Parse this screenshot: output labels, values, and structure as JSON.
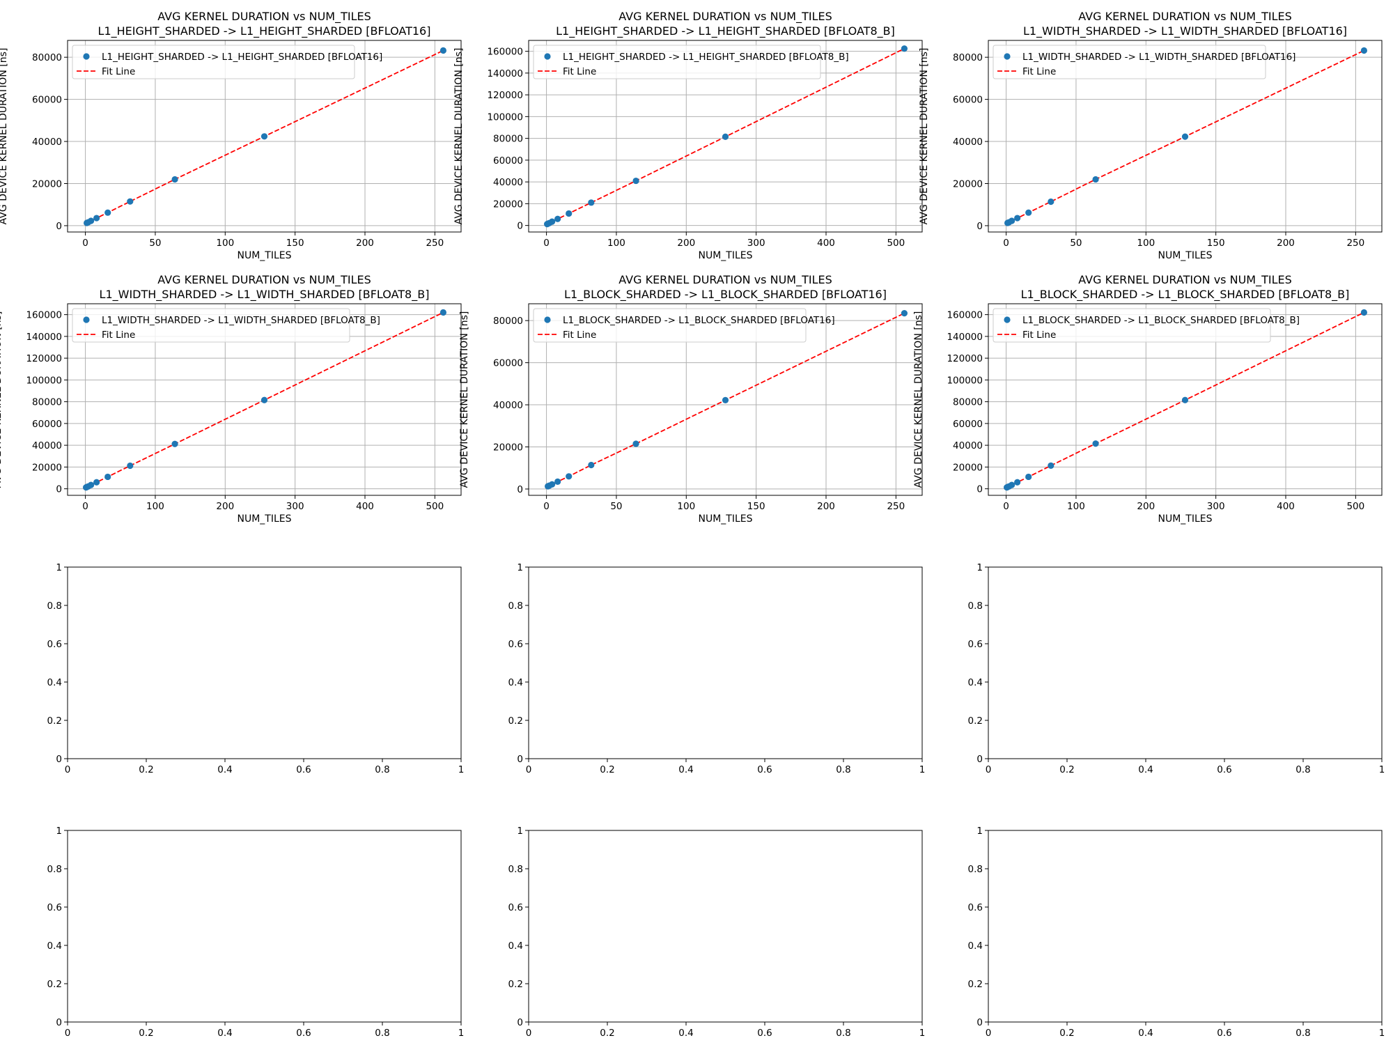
{
  "chart_data": [
    {
      "type": "scatter",
      "title": "AVG KERNEL DURATION vs NUM_TILES",
      "subtitle": "L1_HEIGHT_SHARDED -> L1_HEIGHT_SHARDED [BFLOAT16]",
      "xlabel": "NUM_TILES",
      "ylabel": "AVG DEVICE KERNEL DURATION [ns]",
      "xlim": [
        -12.75,
        268.75
      ],
      "ylim": [
        -3000,
        88000
      ],
      "xticks": [
        0,
        50,
        100,
        150,
        200,
        250
      ],
      "yticks": [
        0,
        20000,
        40000,
        60000,
        80000
      ],
      "grid": true,
      "legend_position": "top-left",
      "series": [
        {
          "name": "L1_HEIGHT_SHARDED -> L1_HEIGHT_SHARDED [BFLOAT16]",
          "kind": "points",
          "x": [
            1,
            2,
            4,
            8,
            16,
            32,
            64,
            128,
            256
          ],
          "y": [
            1300,
            1600,
            2300,
            3600,
            6200,
            11500,
            22000,
            42400,
            83200
          ]
        },
        {
          "name": "Fit Line",
          "kind": "line",
          "x": [
            1,
            2,
            4,
            8,
            16,
            32,
            64,
            128,
            256
          ],
          "y": [
            1300,
            1600,
            2300,
            3600,
            6200,
            11500,
            22000,
            42400,
            83200
          ]
        }
      ]
    },
    {
      "type": "scatter",
      "title": "AVG KERNEL DURATION vs NUM_TILES",
      "subtitle": "L1_HEIGHT_SHARDED -> L1_HEIGHT_SHARDED [BFLOAT8_B]",
      "xlabel": "NUM_TILES",
      "ylabel": "AVG DEVICE KERNEL DURATION [ns]",
      "xlim": [
        -25.5,
        537.5
      ],
      "ylim": [
        -6000,
        170000
      ],
      "xticks": [
        0,
        100,
        200,
        300,
        400,
        500
      ],
      "yticks": [
        0,
        20000,
        40000,
        60000,
        80000,
        100000,
        120000,
        140000,
        160000
      ],
      "grid": true,
      "legend_position": "top-left",
      "series": [
        {
          "name": "L1_HEIGHT_SHARDED -> L1_HEIGHT_SHARDED [BFLOAT8_B]",
          "kind": "points",
          "x": [
            1,
            2,
            4,
            8,
            16,
            32,
            64,
            128,
            256,
            512
          ],
          "y": [
            1300,
            1600,
            2200,
            3500,
            6000,
            11000,
            21000,
            41000,
            81500,
            162500
          ]
        },
        {
          "name": "Fit Line",
          "kind": "line",
          "x": [
            1,
            2,
            4,
            8,
            16,
            32,
            64,
            128,
            256,
            512
          ],
          "y": [
            1300,
            1600,
            2200,
            3500,
            6000,
            11000,
            21000,
            41000,
            81500,
            162500
          ]
        }
      ]
    },
    {
      "type": "scatter",
      "title": "AVG KERNEL DURATION vs NUM_TILES",
      "subtitle": "L1_WIDTH_SHARDED -> L1_WIDTH_SHARDED [BFLOAT16]",
      "xlabel": "NUM_TILES",
      "ylabel": "AVG DEVICE KERNEL DURATION [ns]",
      "xlim": [
        -12.75,
        268.75
      ],
      "ylim": [
        -3000,
        88000
      ],
      "xticks": [
        0,
        50,
        100,
        150,
        200,
        250
      ],
      "yticks": [
        0,
        20000,
        40000,
        60000,
        80000
      ],
      "grid": true,
      "legend_position": "top-left",
      "series": [
        {
          "name": "L1_WIDTH_SHARDED -> L1_WIDTH_SHARDED [BFLOAT16]",
          "kind": "points",
          "x": [
            1,
            2,
            4,
            8,
            16,
            32,
            64,
            128,
            256
          ],
          "y": [
            1300,
            1600,
            2300,
            3600,
            6200,
            11400,
            22000,
            42300,
            83200
          ]
        },
        {
          "name": "Fit Line",
          "kind": "line",
          "x": [
            1,
            2,
            4,
            8,
            16,
            32,
            64,
            128,
            256
          ],
          "y": [
            1300,
            1600,
            2300,
            3600,
            6200,
            11400,
            22000,
            42300,
            83200
          ]
        }
      ]
    },
    {
      "type": "scatter",
      "title": "AVG KERNEL DURATION vs NUM_TILES",
      "subtitle": "L1_WIDTH_SHARDED -> L1_WIDTH_SHARDED [BFLOAT8_B]",
      "xlabel": "NUM_TILES",
      "ylabel": "AVG DEVICE KERNEL DURATION [ns]",
      "xlim": [
        -25.5,
        537.5
      ],
      "ylim": [
        -6000,
        170000
      ],
      "xticks": [
        0,
        100,
        200,
        300,
        400,
        500
      ],
      "yticks": [
        0,
        20000,
        40000,
        60000,
        80000,
        100000,
        120000,
        140000,
        160000
      ],
      "grid": true,
      "legend_position": "top-left",
      "series": [
        {
          "name": "L1_WIDTH_SHARDED -> L1_WIDTH_SHARDED [BFLOAT8_B]",
          "kind": "points",
          "x": [
            1,
            2,
            4,
            8,
            16,
            32,
            64,
            128,
            256,
            512
          ],
          "y": [
            1300,
            1600,
            2200,
            3500,
            6000,
            11000,
            21200,
            41200,
            81500,
            162000
          ]
        },
        {
          "name": "Fit Line",
          "kind": "line",
          "x": [
            1,
            2,
            4,
            8,
            16,
            32,
            64,
            128,
            256,
            512
          ],
          "y": [
            1300,
            1600,
            2200,
            3500,
            6000,
            11000,
            21200,
            41200,
            81500,
            162000
          ]
        }
      ]
    },
    {
      "type": "scatter",
      "title": "AVG KERNEL DURATION vs NUM_TILES",
      "subtitle": "L1_BLOCK_SHARDED -> L1_BLOCK_SHARDED [BFLOAT16]",
      "xlabel": "NUM_TILES",
      "ylabel": "AVG DEVICE KERNEL DURATION [ns]",
      "xlim": [
        -12.75,
        268.75
      ],
      "ylim": [
        -3000,
        88000
      ],
      "xticks": [
        0,
        50,
        100,
        150,
        200,
        250
      ],
      "yticks": [
        0,
        20000,
        40000,
        60000,
        80000
      ],
      "grid": true,
      "legend_position": "top-left",
      "series": [
        {
          "name": "L1_BLOCK_SHARDED -> L1_BLOCK_SHARDED [BFLOAT16]",
          "kind": "points",
          "x": [
            1,
            2,
            4,
            8,
            16,
            32,
            64,
            128,
            256
          ],
          "y": [
            1300,
            1600,
            2200,
            3500,
            6000,
            11400,
            21500,
            42200,
            83500
          ]
        },
        {
          "name": "Fit Line",
          "kind": "line",
          "x": [
            1,
            2,
            4,
            8,
            16,
            32,
            64,
            128,
            256
          ],
          "y": [
            1300,
            1600,
            2200,
            3500,
            6000,
            11400,
            21500,
            42200,
            83500
          ]
        }
      ]
    },
    {
      "type": "scatter",
      "title": "AVG KERNEL DURATION vs NUM_TILES",
      "subtitle": "L1_BLOCK_SHARDED -> L1_BLOCK_SHARDED [BFLOAT8_B]",
      "xlabel": "NUM_TILES",
      "ylabel": "AVG DEVICE KERNEL DURATION [ns]",
      "xlim": [
        -25.5,
        537.5
      ],
      "ylim": [
        -6000,
        170000
      ],
      "xticks": [
        0,
        100,
        200,
        300,
        400,
        500
      ],
      "yticks": [
        0,
        20000,
        40000,
        60000,
        80000,
        100000,
        120000,
        140000,
        160000
      ],
      "grid": true,
      "legend_position": "top-left",
      "series": [
        {
          "name": "L1_BLOCK_SHARDED -> L1_BLOCK_SHARDED [BFLOAT8_B]",
          "kind": "points",
          "x": [
            1,
            2,
            4,
            8,
            16,
            32,
            64,
            128,
            256,
            512
          ],
          "y": [
            1300,
            1600,
            2200,
            3500,
            6000,
            11000,
            21300,
            41500,
            81500,
            162000
          ]
        },
        {
          "name": "Fit Line",
          "kind": "line",
          "x": [
            1,
            2,
            4,
            8,
            16,
            32,
            64,
            128,
            256,
            512
          ],
          "y": [
            1300,
            1600,
            2200,
            3500,
            6000,
            11000,
            21300,
            41500,
            81500,
            162000
          ]
        }
      ]
    },
    {
      "type": "scatter",
      "title": "",
      "xlabel": "",
      "ylabel": "",
      "xlim": [
        0,
        1
      ],
      "ylim": [
        0,
        1
      ],
      "xticks": [
        0,
        0.2,
        0.4,
        0.6,
        0.8,
        1
      ],
      "yticks": [
        0,
        0.2,
        0.4,
        0.6,
        0.8,
        1
      ],
      "grid": false,
      "series": []
    },
    {
      "type": "scatter",
      "title": "",
      "xlabel": "",
      "ylabel": "",
      "xlim": [
        0,
        1
      ],
      "ylim": [
        0,
        1
      ],
      "xticks": [
        0,
        0.2,
        0.4,
        0.6,
        0.8,
        1
      ],
      "yticks": [
        0,
        0.2,
        0.4,
        0.6,
        0.8,
        1
      ],
      "grid": false,
      "series": []
    },
    {
      "type": "scatter",
      "title": "",
      "xlabel": "",
      "ylabel": "",
      "xlim": [
        0,
        1
      ],
      "ylim": [
        0,
        1
      ],
      "xticks": [
        0,
        0.2,
        0.4,
        0.6,
        0.8,
        1
      ],
      "yticks": [
        0,
        0.2,
        0.4,
        0.6,
        0.8,
        1
      ],
      "grid": false,
      "series": []
    },
    {
      "type": "scatter",
      "title": "",
      "xlabel": "",
      "ylabel": "",
      "xlim": [
        0,
        1
      ],
      "ylim": [
        0,
        1
      ],
      "xticks": [
        0,
        0.2,
        0.4,
        0.6,
        0.8,
        1
      ],
      "yticks": [
        0,
        0.2,
        0.4,
        0.6,
        0.8,
        1
      ],
      "grid": false,
      "series": []
    },
    {
      "type": "scatter",
      "title": "",
      "xlabel": "",
      "ylabel": "",
      "xlim": [
        0,
        1
      ],
      "ylim": [
        0,
        1
      ],
      "xticks": [
        0,
        0.2,
        0.4,
        0.6,
        0.8,
        1
      ],
      "yticks": [
        0,
        0.2,
        0.4,
        0.6,
        0.8,
        1
      ],
      "grid": false,
      "series": []
    },
    {
      "type": "scatter",
      "title": "",
      "xlabel": "",
      "ylabel": "",
      "xlim": [
        0,
        1
      ],
      "ylim": [
        0,
        1
      ],
      "xticks": [
        0,
        0.2,
        0.4,
        0.6,
        0.8,
        1
      ],
      "yticks": [
        0,
        0.2,
        0.4,
        0.6,
        0.8,
        1
      ],
      "grid": false,
      "series": []
    }
  ],
  "colors": {
    "points": "#1f77b4",
    "fit_line": "#ff0000",
    "grid": "#b0b0b0",
    "axes": "#000000",
    "legend_border": "#cccccc"
  }
}
